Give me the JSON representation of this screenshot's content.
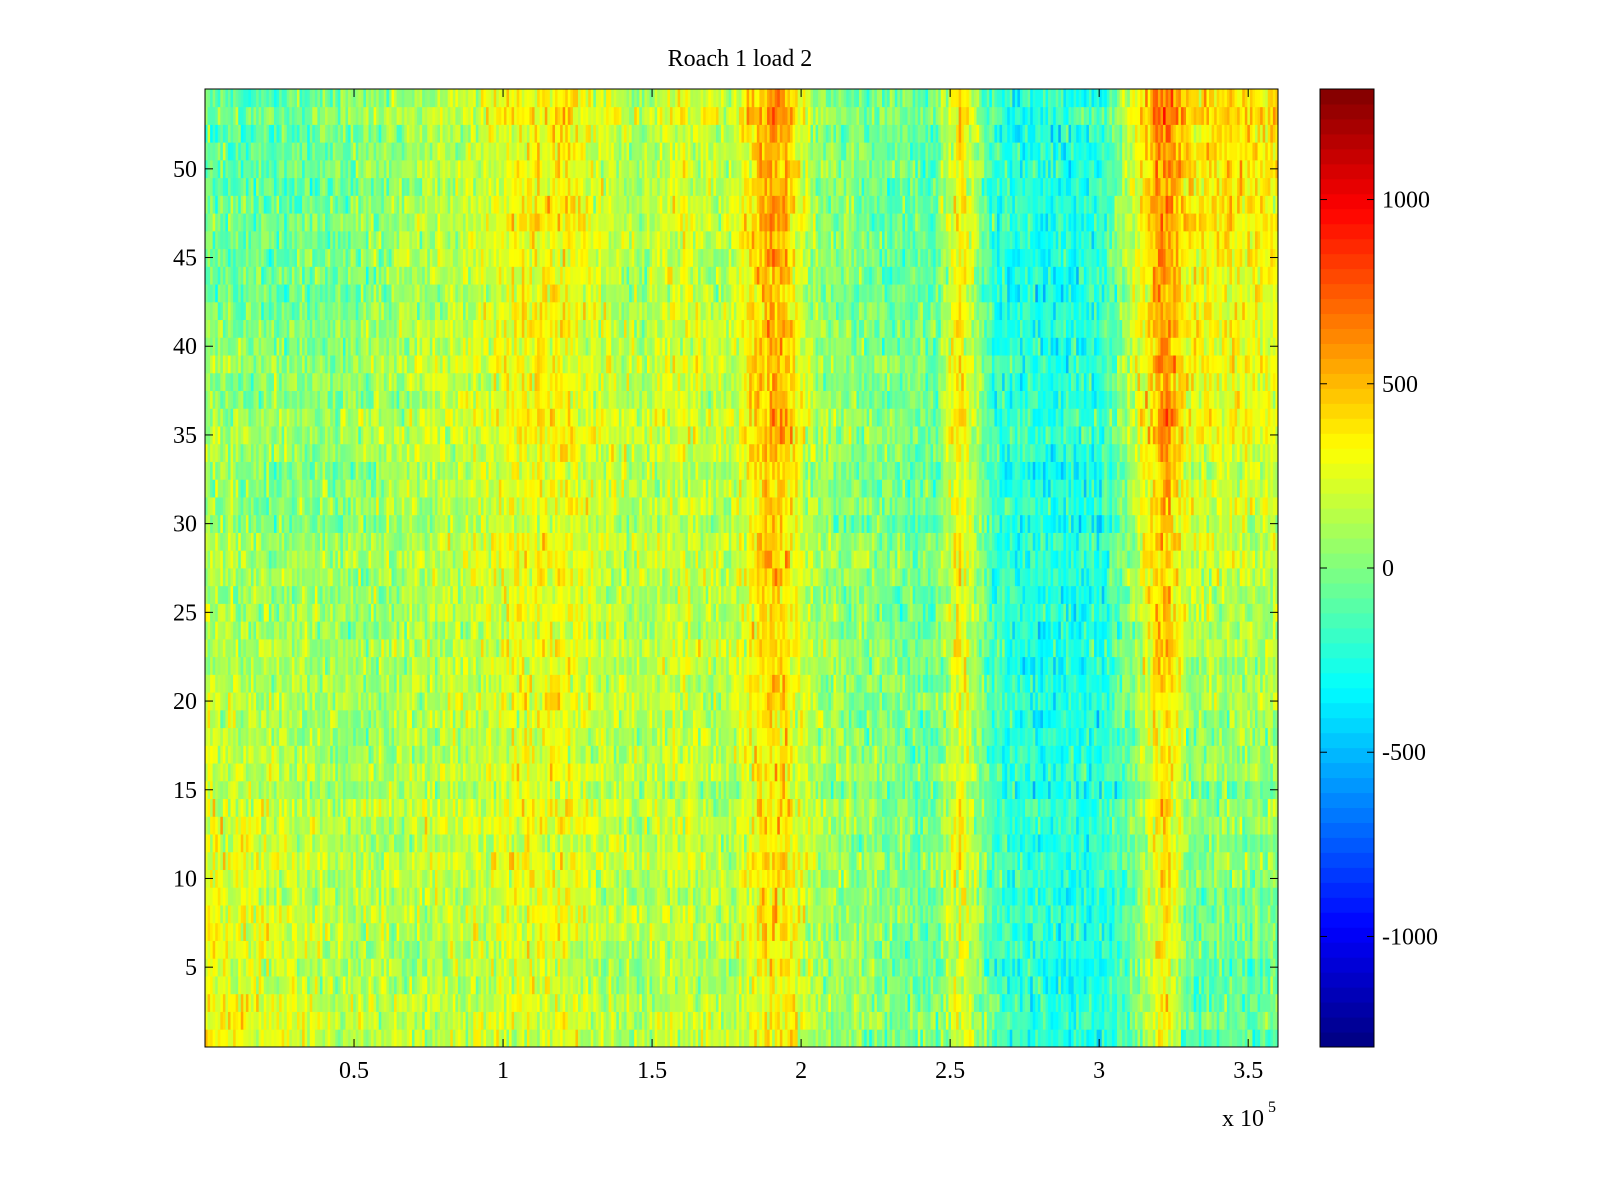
{
  "chart_data": {
    "type": "heatmap",
    "title": "Roach 1 load 2",
    "xlabel": "",
    "ylabel": "",
    "x_multiplier_label": {
      "base": "x 10",
      "exponent": "5"
    },
    "xlim": [
      0,
      3.6
    ],
    "ylim": [
      0.5,
      54.5
    ],
    "x_ticks": [
      0.5,
      1,
      1.5,
      2,
      2.5,
      3,
      3.5
    ],
    "x_tick_labels": [
      "0.5",
      "1",
      "1.5",
      "2",
      "2.5",
      "3",
      "3.5"
    ],
    "y_ticks": [
      5,
      10,
      15,
      20,
      25,
      30,
      35,
      40,
      45,
      50
    ],
    "y_tick_labels": [
      "5",
      "10",
      "15",
      "20",
      "25",
      "30",
      "35",
      "40",
      "45",
      "50"
    ],
    "rows": 54,
    "colormap": "jet",
    "colorbar": {
      "clim": [
        -1300,
        1300
      ],
      "ticks": [
        -1000,
        -500,
        0,
        500,
        1000
      ],
      "tick_labels": [
        "-1000",
        "-500",
        "0",
        "500",
        "1000"
      ]
    },
    "column_trend": {
      "description_x_units": "x in units of 10^5",
      "x": [
        0.0,
        0.1,
        0.25,
        0.35,
        0.5,
        0.7,
        0.9,
        1.05,
        1.2,
        1.3,
        1.45,
        1.6,
        1.75,
        1.9,
        1.95,
        2.05,
        2.25,
        2.45,
        2.53,
        2.65,
        2.85,
        3.0,
        3.1,
        3.22,
        3.3,
        3.45,
        3.6
      ],
      "bottom_half_mean": [
        320,
        280,
        240,
        180,
        120,
        140,
        170,
        220,
        220,
        130,
        120,
        160,
        110,
        330,
        320,
        100,
        20,
        -60,
        280,
        -160,
        -260,
        -260,
        -160,
        330,
        -120,
        -100,
        -60
      ],
      "top_half_mean": [
        -60,
        -80,
        -100,
        -60,
        0,
        100,
        180,
        330,
        380,
        260,
        120,
        260,
        120,
        620,
        500,
        60,
        -20,
        -80,
        420,
        -220,
        -260,
        -200,
        200,
        720,
        440,
        420,
        400
      ]
    }
  },
  "colors": {
    "background": "#ffffff",
    "axis": "#000000"
  }
}
